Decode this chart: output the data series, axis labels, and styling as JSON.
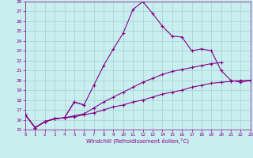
{
  "xlabel": "Windchill (Refroidissement éolien,°C)",
  "background_color": "#c8eef0",
  "grid_color": "#a0d4cc",
  "line_color": "#880088",
  "x_values": [
    0,
    1,
    2,
    3,
    4,
    5,
    6,
    7,
    8,
    9,
    10,
    11,
    12,
    13,
    14,
    15,
    16,
    17,
    18,
    19,
    20,
    21,
    22,
    23
  ],
  "series": [
    [
      16.5,
      15.2,
      15.8,
      16.1,
      16.2,
      17.8,
      17.5,
      19.5,
      21.5,
      23.2,
      24.8,
      27.2,
      28.0,
      26.8,
      25.5,
      24.5,
      24.4,
      23.0,
      23.2,
      23.0,
      21.0,
      20.0,
      19.8,
      20.0
    ],
    [
      16.5,
      15.2,
      15.8,
      16.1,
      16.2,
      17.8,
      17.5,
      null,
      null,
      null,
      null,
      null,
      null,
      null,
      null,
      null,
      null,
      null,
      null,
      null,
      null,
      null,
      null,
      null
    ],
    [
      16.5,
      15.2,
      15.8,
      16.1,
      16.2,
      16.4,
      16.6,
      17.2,
      17.8,
      18.3,
      18.8,
      19.3,
      19.8,
      20.2,
      20.6,
      20.9,
      21.1,
      21.3,
      21.5,
      21.7,
      21.8,
      null,
      null,
      null
    ],
    [
      16.5,
      15.2,
      15.8,
      16.1,
      16.2,
      16.3,
      16.5,
      16.7,
      17.0,
      17.3,
      17.5,
      17.8,
      18.0,
      18.3,
      18.6,
      18.8,
      19.0,
      19.3,
      19.5,
      19.7,
      19.8,
      19.9,
      20.0,
      20.0
    ]
  ],
  "ylim": [
    15,
    28
  ],
  "xlim": [
    0,
    23
  ],
  "yticks": [
    15,
    16,
    17,
    18,
    19,
    20,
    21,
    22,
    23,
    24,
    25,
    26,
    27,
    28
  ],
  "xticks": [
    0,
    1,
    2,
    3,
    4,
    5,
    6,
    7,
    8,
    9,
    10,
    11,
    12,
    13,
    14,
    15,
    16,
    17,
    18,
    19,
    20,
    21,
    22,
    23
  ]
}
